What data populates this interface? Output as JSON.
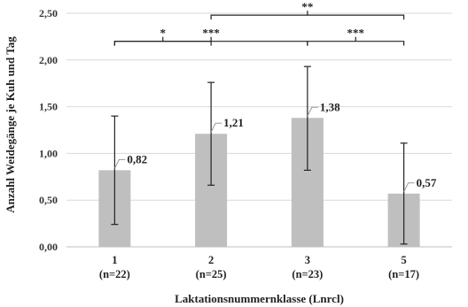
{
  "chart_data": {
    "type": "bar",
    "categories": [
      "1",
      "2",
      "3",
      "5"
    ],
    "category_counts": [
      "(n=22)",
      "(n=25)",
      "(n=23)",
      "(n=17)"
    ],
    "values": [
      0.82,
      1.21,
      1.38,
      0.57
    ],
    "data_labels": [
      "0,82",
      "1,21",
      "1,38",
      "0,57"
    ],
    "error_low": [
      0.24,
      0.66,
      0.82,
      0.03
    ],
    "error_high": [
      1.4,
      1.76,
      1.93,
      1.11
    ],
    "xlabel": "Laktationsnummernklasse (Lnrcl)",
    "ylabel": "Anzahl Weidegänge je Kuh und Tag",
    "ylim": [
      0,
      2.5
    ],
    "yticks": [
      "0,00",
      "0,50",
      "1,00",
      "1,50",
      "2,00",
      "2,50"
    ],
    "grid": true,
    "bar_color": "#bfbfbf",
    "significance": [
      {
        "from": 0,
        "to": 1,
        "label": "*"
      },
      {
        "from": 0,
        "to": 2,
        "label": "***"
      },
      {
        "from": 2,
        "to": 3,
        "label": "***"
      },
      {
        "from": 1,
        "to": 3,
        "label": "**"
      }
    ]
  }
}
